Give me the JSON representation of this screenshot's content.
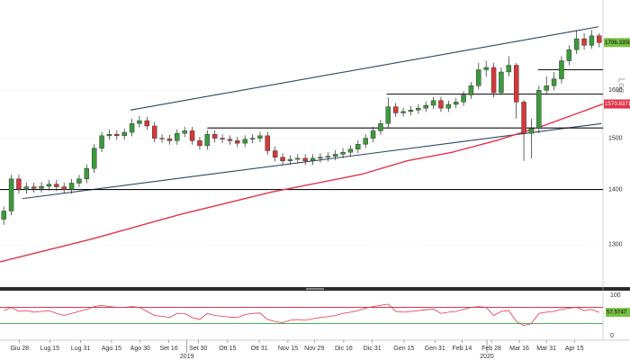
{
  "chart_data": {
    "type": "candlestick",
    "log_scale": true,
    "scale_label": "Log",
    "grid": true,
    "xlim": [
      0,
      80
    ],
    "ylim": [
      1229,
      1807
    ],
    "yticks": [
      1300,
      1400,
      1500,
      1600
    ],
    "xticks": [
      {
        "value": 2.6,
        "label": "Giu 28"
      },
      {
        "value": 6.6,
        "label": "Lug 15"
      },
      {
        "value": 10.7,
        "label": "Lug 31"
      },
      {
        "value": 14.8,
        "label": "Ago 15"
      },
      {
        "value": 18.6,
        "label": "Ago 30"
      },
      {
        "value": 22.4,
        "label": "Set 16"
      },
      {
        "value": 26.3,
        "label": "Set 30"
      },
      {
        "value": 30.2,
        "label": "Ott 15"
      },
      {
        "value": 34.4,
        "label": "Ott 31"
      },
      {
        "value": 38.2,
        "label": "Nov 15"
      },
      {
        "value": 41.7,
        "label": "Nov 29"
      },
      {
        "value": 45.6,
        "label": "Dic 16"
      },
      {
        "value": 49.4,
        "label": "Dic 31"
      },
      {
        "value": 53.6,
        "label": "Gen 15"
      },
      {
        "value": 57.7,
        "label": "Gen 31"
      },
      {
        "value": 61.3,
        "label": "Feb 14"
      },
      {
        "value": 65.2,
        "label": "Feb 28"
      },
      {
        "value": 68.9,
        "label": "Mar 16"
      },
      {
        "value": 72.5,
        "label": "Mar 31"
      },
      {
        "value": 76.2,
        "label": "Apr 15"
      }
    ],
    "year_labels": [
      {
        "value": 24.8,
        "label": "2019"
      },
      {
        "value": 64.6,
        "label": "2020"
      }
    ],
    "up_color": "#3c9a3c",
    "down_color": "#d23a3a",
    "open": [
      1345,
      1360,
      1420,
      1400,
      1405,
      1402,
      1406,
      1410,
      1405,
      1400,
      1412,
      1420,
      1440,
      1480,
      1505,
      1508,
      1505,
      1512,
      1530,
      1536,
      1525,
      1500,
      1499,
      1495,
      1510,
      1515,
      1495,
      1485,
      1508,
      1500,
      1498,
      1495,
      1490,
      1498,
      1500,
      1505,
      1475,
      1462,
      1455,
      1458,
      1460,
      1455,
      1460,
      1462,
      1464,
      1468,
      1472,
      1478,
      1488,
      1500,
      1515,
      1530,
      1565,
      1552,
      1555,
      1558,
      1562,
      1568,
      1578,
      1562,
      1570,
      1575,
      1590,
      1610,
      1645,
      1650,
      1595,
      1640,
      1655,
      1575,
      1510,
      1520,
      1600,
      1610,
      1625,
      1665,
      1690,
      1715,
      1700,
      1722
    ],
    "high": [
      1368,
      1428,
      1428,
      1413,
      1413,
      1414,
      1418,
      1418,
      1413,
      1420,
      1428,
      1448,
      1488,
      1513,
      1518,
      1516,
      1520,
      1540,
      1546,
      1544,
      1533,
      1508,
      1507,
      1518,
      1523,
      1523,
      1503,
      1516,
      1516,
      1508,
      1506,
      1503,
      1506,
      1508,
      1513,
      1513,
      1483,
      1470,
      1466,
      1468,
      1468,
      1468,
      1470,
      1472,
      1476,
      1480,
      1486,
      1496,
      1508,
      1523,
      1538,
      1585,
      1573,
      1563,
      1566,
      1570,
      1576,
      1586,
      1586,
      1578,
      1583,
      1598,
      1618,
      1660,
      1665,
      1660,
      1650,
      1675,
      1660,
      1580,
      1540,
      1610,
      1630,
      1640,
      1675,
      1700,
      1735,
      1728,
      1735,
      1728
    ],
    "low": [
      1335,
      1352,
      1392,
      1392,
      1394,
      1394,
      1398,
      1397,
      1392,
      1392,
      1404,
      1412,
      1432,
      1472,
      1497,
      1497,
      1497,
      1504,
      1522,
      1517,
      1492,
      1491,
      1487,
      1487,
      1502,
      1487,
      1477,
      1477,
      1492,
      1490,
      1487,
      1482,
      1482,
      1490,
      1492,
      1467,
      1454,
      1447,
      1447,
      1450,
      1447,
      1447,
      1452,
      1454,
      1456,
      1460,
      1464,
      1470,
      1480,
      1492,
      1507,
      1522,
      1544,
      1544,
      1547,
      1550,
      1554,
      1560,
      1554,
      1554,
      1562,
      1567,
      1582,
      1602,
      1630,
      1585,
      1590,
      1630,
      1540,
      1455,
      1460,
      1510,
      1590,
      1600,
      1615,
      1655,
      1680,
      1690,
      1692,
      1695
    ],
    "close": [
      1360,
      1420,
      1400,
      1405,
      1402,
      1406,
      1410,
      1405,
      1400,
      1412,
      1420,
      1440,
      1480,
      1505,
      1508,
      1505,
      1512,
      1530,
      1536,
      1525,
      1500,
      1499,
      1495,
      1510,
      1515,
      1495,
      1485,
      1508,
      1500,
      1498,
      1495,
      1490,
      1498,
      1500,
      1505,
      1475,
      1462,
      1455,
      1458,
      1460,
      1455,
      1460,
      1462,
      1464,
      1468,
      1472,
      1478,
      1488,
      1500,
      1515,
      1530,
      1565,
      1552,
      1555,
      1558,
      1562,
      1568,
      1578,
      1562,
      1570,
      1575,
      1590,
      1610,
      1645,
      1650,
      1595,
      1640,
      1655,
      1575,
      1510,
      1520,
      1600,
      1610,
      1625,
      1665,
      1690,
      1715,
      1700,
      1722,
      1706.335
    ],
    "close_last_label": "1706.3350",
    "close_label_color": "#7ac143",
    "moving_average": {
      "color": "#e0344a",
      "x": [
        0,
        12,
        24,
        36,
        48,
        54,
        60,
        66,
        72,
        80
      ],
      "values": [
        1270,
        1309,
        1354,
        1395,
        1429,
        1455,
        1472,
        1496,
        1525,
        1570.8371
      ]
    },
    "trendlines": [
      {
        "color": "#2f4560",
        "x": [
          17.3,
          79.4
        ],
        "values": [
          1558,
          1743
        ]
      },
      {
        "color": "#2f4560",
        "x": [
          3.0,
          79.8
        ],
        "values": [
          1383,
          1530
        ]
      },
      {
        "color": "#111111",
        "x": [
          0,
          80
        ],
        "values": [
          1400,
          1400
        ]
      },
      {
        "color": "#111111",
        "x": [
          27.5,
          80
        ],
        "values": [
          1521,
          1521
        ]
      },
      {
        "color": "#111111",
        "x": [
          51.3,
          80
        ],
        "values": [
          1592,
          1592
        ]
      },
      {
        "color": "#111111",
        "x": [
          71.4,
          80
        ],
        "values": [
          1645,
          1645
        ]
      }
    ],
    "rsi": {
      "color": "#e0344a",
      "label_color": "#7ac143",
      "ylim": [
        0,
        100
      ],
      "yticks": [
        0,
        100
      ],
      "levels": [
        {
          "value": 70,
          "color": "#e0344a"
        },
        {
          "value": 30,
          "color": "#4caf50"
        }
      ],
      "values": [
        62,
        70,
        60,
        62,
        58,
        60,
        62,
        55,
        50,
        55,
        60,
        65,
        72,
        75,
        72,
        70,
        70,
        72,
        70,
        60,
        50,
        48,
        45,
        55,
        55,
        45,
        40,
        55,
        50,
        48,
        46,
        45,
        52,
        55,
        56,
        40,
        35,
        32,
        38,
        40,
        38,
        42,
        45,
        47,
        50,
        55,
        58,
        62,
        68,
        72,
        75,
        78,
        60,
        58,
        60,
        62,
        64,
        66,
        55,
        58,
        60,
        65,
        70,
        72,
        70,
        50,
        60,
        62,
        35,
        25,
        30,
        55,
        58,
        60,
        65,
        68,
        70,
        62,
        65,
        57.5747
      ]
    }
  }
}
